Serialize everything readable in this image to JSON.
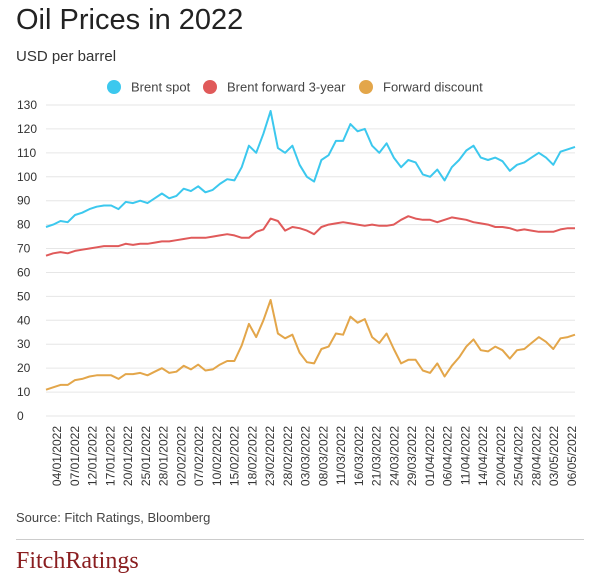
{
  "header": {
    "title": "Oil Prices in 2022",
    "subtitle": "USD per barrel"
  },
  "footer": {
    "source": "Source: Fitch Ratings, Bloomberg",
    "brand": "FitchRatings"
  },
  "colors": {
    "brent_spot": "#3cc8ee",
    "brent_forward": "#e05a5a",
    "forward_discount": "#e3a64a",
    "grid": "#e6e6e6"
  },
  "chart_data": {
    "type": "line",
    "ylim": [
      0,
      130
    ],
    "yticks": [
      0,
      10,
      20,
      30,
      40,
      50,
      60,
      70,
      80,
      90,
      100,
      110,
      120,
      130
    ],
    "x_tick_labels": [
      "04/01/2022",
      "07/01/2022",
      "12/01/2022",
      "17/01/2022",
      "20/01/2022",
      "25/01/2022",
      "28/01/2022",
      "02/02/2022",
      "07/02/2022",
      "10/02/2022",
      "15/02/2022",
      "18/02/2022",
      "23/02/2022",
      "28/02/2022",
      "03/03/2022",
      "08/03/2022",
      "11/03/2022",
      "16/03/2022",
      "21/03/2022",
      "24/03/2022",
      "29/03/2022",
      "01/04/2022",
      "06/04/2022",
      "11/04/2022",
      "14/04/2022",
      "20/04/2022",
      "25/04/2022",
      "28/04/2022",
      "03/05/2022",
      "06/05/2022"
    ],
    "legend_position": "top",
    "series": [
      {
        "name": "Brent spot",
        "values": [
          79.0,
          80.0,
          81.5,
          81.0,
          84.0,
          85.0,
          86.5,
          87.5,
          88.0,
          88.0,
          86.5,
          89.5,
          89.0,
          90.0,
          89.0,
          91.0,
          93.0,
          91.0,
          92.0,
          95.0,
          94.0,
          96.0,
          93.5,
          94.5,
          97.0,
          99.0,
          98.5,
          104.0,
          113.0,
          110.0,
          118.0,
          127.5,
          112.0,
          110.0,
          113.0,
          105.0,
          100.0,
          98.0,
          107.0,
          109.0,
          115.0,
          115.0,
          122.0,
          119.0,
          120.0,
          113.0,
          110.0,
          114.0,
          108.0,
          104.0,
          107.0,
          106.0,
          101.0,
          100.0,
          103.0,
          98.5,
          104.0,
          107.0,
          111.0,
          113.0,
          108.0,
          107.0,
          108.0,
          106.5,
          102.5,
          105.0,
          106.0,
          108.0,
          110.0,
          108.0,
          105.0,
          110.5,
          111.5,
          112.5
        ]
      },
      {
        "name": "Brent forward 3-year",
        "values": [
          67.0,
          68.0,
          68.5,
          68.0,
          69.0,
          69.5,
          70.0,
          70.5,
          71.0,
          71.0,
          71.0,
          72.0,
          71.5,
          72.0,
          72.0,
          72.5,
          73.0,
          73.0,
          73.5,
          74.0,
          74.5,
          74.5,
          74.5,
          75.0,
          75.5,
          76.0,
          75.5,
          74.5,
          74.5,
          77.0,
          78.0,
          82.5,
          81.5,
          77.5,
          79.0,
          78.5,
          77.5,
          76.0,
          79.0,
          80.0,
          80.5,
          81.0,
          80.5,
          80.0,
          79.5,
          80.0,
          79.5,
          79.5,
          80.0,
          82.0,
          83.5,
          82.5,
          82.0,
          82.0,
          81.0,
          82.0,
          83.0,
          82.5,
          82.0,
          81.0,
          80.5,
          80.0,
          79.0,
          79.0,
          78.5,
          77.5,
          78.0,
          77.5,
          77.0,
          77.0,
          77.0,
          78.0,
          78.5,
          78.5
        ]
      },
      {
        "name": "Forward discount",
        "values": [
          11.0,
          12.0,
          13.0,
          13.0,
          15.0,
          15.5,
          16.5,
          17.0,
          17.0,
          17.0,
          15.5,
          17.5,
          17.5,
          18.0,
          17.0,
          18.5,
          20.0,
          18.0,
          18.5,
          21.0,
          19.5,
          21.5,
          19.0,
          19.5,
          21.5,
          23.0,
          23.0,
          29.5,
          38.5,
          33.0,
          40.0,
          48.5,
          34.5,
          32.5,
          34.0,
          26.5,
          22.5,
          22.0,
          28.0,
          29.0,
          34.5,
          34.0,
          41.5,
          39.0,
          40.5,
          33.0,
          30.5,
          34.5,
          28.0,
          22.0,
          23.5,
          23.5,
          19.0,
          18.0,
          22.0,
          16.5,
          21.0,
          24.5,
          29.0,
          32.0,
          27.5,
          27.0,
          29.0,
          27.5,
          24.0,
          27.5,
          28.0,
          30.5,
          33.0,
          31.0,
          28.0,
          32.5,
          33.0,
          34.0
        ]
      }
    ]
  }
}
